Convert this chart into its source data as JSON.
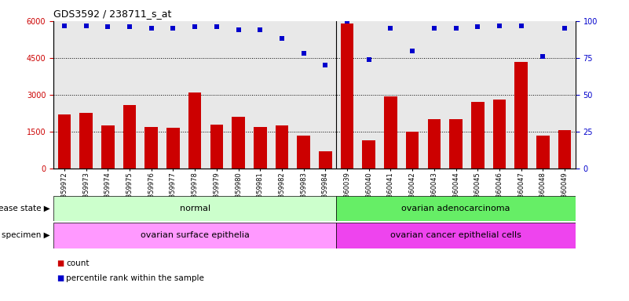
{
  "title": "GDS3592 / 238711_s_at",
  "categories": [
    "GSM359972",
    "GSM359973",
    "GSM359974",
    "GSM359975",
    "GSM359976",
    "GSM359977",
    "GSM359978",
    "GSM359979",
    "GSM359980",
    "GSM359981",
    "GSM359982",
    "GSM359983",
    "GSM359984",
    "GSM360039",
    "GSM360040",
    "GSM360041",
    "GSM360042",
    "GSM360043",
    "GSM360044",
    "GSM360045",
    "GSM360046",
    "GSM360047",
    "GSM360048",
    "GSM360049"
  ],
  "counts": [
    2200,
    2250,
    1750,
    2600,
    1700,
    1650,
    3100,
    1800,
    2100,
    1700,
    1750,
    1350,
    700,
    5900,
    1150,
    2950,
    1500,
    2000,
    2000,
    2700,
    2800,
    4350,
    1350,
    1550
  ],
  "percentiles": [
    97,
    97,
    96,
    96,
    95,
    95,
    96,
    96,
    94,
    94,
    88,
    78,
    70,
    100,
    74,
    95,
    80,
    95,
    95,
    96,
    97,
    97,
    76,
    95
  ],
  "bar_color": "#cc0000",
  "dot_color": "#0000cc",
  "ylim_left": [
    0,
    6000
  ],
  "ylim_right": [
    0,
    100
  ],
  "yticks_left": [
    0,
    1500,
    3000,
    4500,
    6000
  ],
  "yticks_right": [
    0,
    25,
    50,
    75,
    100
  ],
  "group1_label": "normal",
  "group2_label": "ovarian adenocarcinoma",
  "group1_specimen": "ovarian surface epithelia",
  "group2_specimen": "ovarian cancer epithelial cells",
  "group1_count": 13,
  "group2_count": 11,
  "group1_bg": "#ccffcc",
  "group2_bg": "#66ee66",
  "specimen1_bg": "#ff99ff",
  "specimen2_bg": "#ee44ee",
  "legend_count_label": "count",
  "legend_pct_label": "percentile rank within the sample",
  "plot_bg": "#e8e8e8",
  "fig_bg": "#ffffff"
}
